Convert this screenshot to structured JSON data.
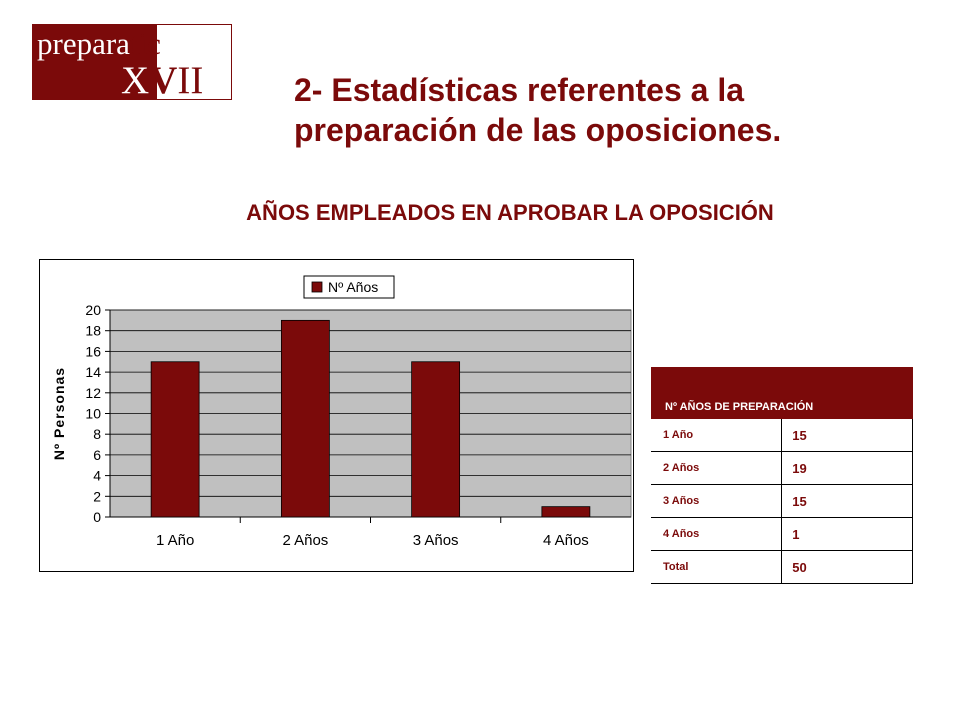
{
  "logo": {
    "line1_a": "prepara",
    "line1_b": "tic",
    "line2_a": "X",
    "line2_b": "V",
    "line2_c": "II"
  },
  "title": "2- Estadísticas referentes a la preparación de las oposiciones.",
  "subtitle": "AÑOS EMPLEADOS EN APROBAR LA OPOSICIÓN",
  "colors": {
    "accent": "#7b0a0a",
    "plot_bg": "#c0c0c0"
  },
  "chart_data": {
    "type": "bar",
    "title": "",
    "xlabel": "",
    "ylabel": "Nº Personas",
    "categories": [
      "1 Año",
      "2 Años",
      "3 Años",
      "4 Años"
    ],
    "series": [
      {
        "name": "Nº Años",
        "values": [
          15,
          19,
          15,
          1
        ],
        "color": "#7b0a0a"
      }
    ],
    "ylim": [
      0,
      20
    ],
    "yticks": [
      0,
      2,
      4,
      6,
      8,
      10,
      12,
      14,
      16,
      18,
      20
    ],
    "grid": true,
    "legend": "top-center"
  },
  "table": {
    "header": "Nº AÑOS DE PREPARACIÓN",
    "rows": [
      {
        "label": "1 Año",
        "value": "15"
      },
      {
        "label": "2 Años",
        "value": "19"
      },
      {
        "label": "3 Años",
        "value": "15"
      },
      {
        "label": "4 Años",
        "value": "1"
      },
      {
        "label": "Total",
        "value": "50"
      }
    ]
  }
}
